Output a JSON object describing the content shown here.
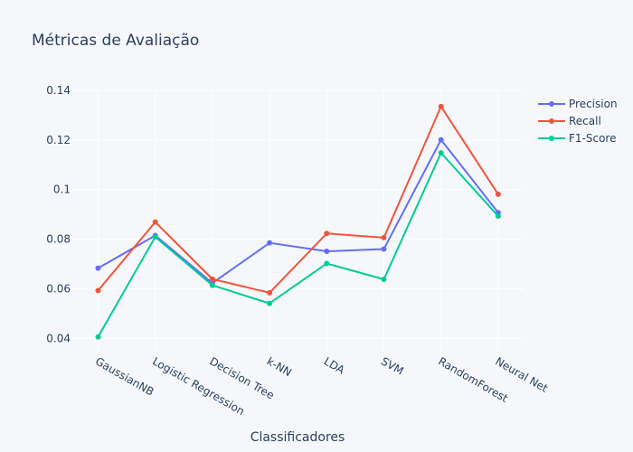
{
  "chart_data": {
    "type": "line",
    "title": "Métricas de Avaliação",
    "xlabel": "Classificadores",
    "ylabel": "",
    "categories": [
      "GaussianNB",
      "Logistic Regression",
      "Decision Tree",
      "k-NN",
      "LDA",
      "SVM",
      "RandomForest",
      "Neural Net"
    ],
    "y_ticks": [
      "0.04",
      "0.06",
      "0.08",
      "0.1",
      "0.12",
      "0.14"
    ],
    "ylim": [
      0.035,
      0.14
    ],
    "grid": true,
    "legend_position": "top-right",
    "series": [
      {
        "name": "Precision",
        "color": "#636efa",
        "values": [
          0.0683,
          0.0815,
          0.0623,
          0.0785,
          0.0751,
          0.076,
          0.1201,
          0.0907
        ]
      },
      {
        "name": "Recall",
        "color": "#ef553b",
        "values": [
          0.0593,
          0.0869,
          0.0639,
          0.0584,
          0.0823,
          0.0806,
          0.1335,
          0.0981
        ]
      },
      {
        "name": "F1-Score",
        "color": "#00cc96",
        "values": [
          0.0406,
          0.0809,
          0.0614,
          0.0541,
          0.0702,
          0.0638,
          0.1148,
          0.0893
        ]
      }
    ]
  }
}
